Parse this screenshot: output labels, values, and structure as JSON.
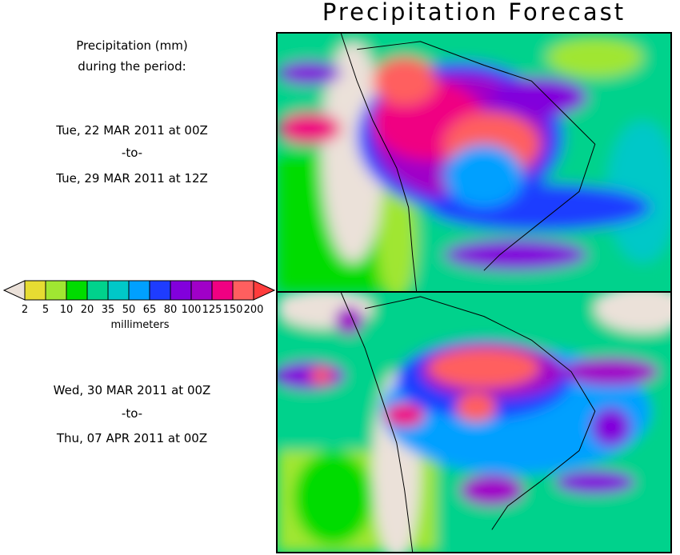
{
  "title": "Precipitation Forecast",
  "description": {
    "line1": "Precipitation (mm)",
    "line2": "during the period:"
  },
  "periods": [
    {
      "start": "Tue, 22 MAR 2011 at 00Z",
      "sep": "-to-",
      "end": "Tue, 29 MAR 2011 at 12Z"
    },
    {
      "start": "Wed, 30 MAR 2011 at 00Z",
      "sep": "-to-",
      "end": "Thu, 07 APR 2011 at 00Z"
    }
  ],
  "legend": {
    "units": "millimeters",
    "labels": [
      "2",
      "5",
      "10",
      "20",
      "35",
      "50",
      "65",
      "80",
      "100",
      "125",
      "150",
      "200"
    ],
    "under_color": "#ebe1d9",
    "over_color": "#ff3c3c",
    "colors": [
      "#e6dc32",
      "#a0e632",
      "#00dc00",
      "#00d28c",
      "#00c8c8",
      "#00a0ff",
      "#1e3cff",
      "#8200dc",
      "#a000c8",
      "#f00082",
      "#ff5f5f"
    ]
  }
}
